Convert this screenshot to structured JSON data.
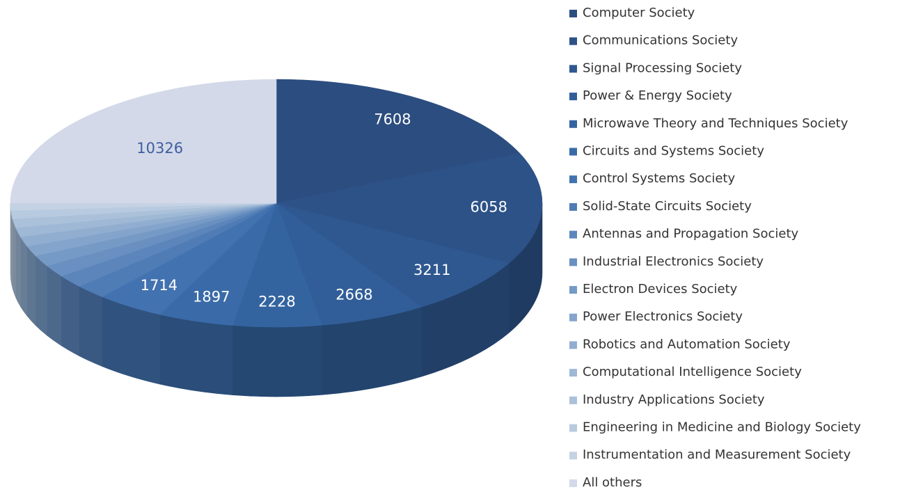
{
  "chart_data": {
    "type": "pie3d",
    "categories": [
      "Computer Society",
      "Communications Society",
      "Signal Processing Society",
      "Power & Energy Society",
      "Microwave Theory and Techniques Society",
      "Circuits and Systems Society",
      "Control Systems Society",
      "Solid-State Circuits Society",
      "Antennas and Propagation Society",
      "Industrial Electronics Society",
      "Electron Devices Society",
      "Power Electronics Society",
      "Robotics and Automation Society",
      "Computational Intelligence Society",
      "Industry Applications Society",
      "Engineering in Medicine and Biology Society",
      "Instrumentation and Measurement Society",
      "All others"
    ],
    "values": [
      7608,
      6058,
      3211,
      2668,
      2228,
      1897,
      1714,
      800,
      700,
      650,
      600,
      550,
      520,
      500,
      480,
      450,
      400,
      10326
    ],
    "colors": [
      "#2c4d7f",
      "#2d5288",
      "#2f5890",
      "#315e98",
      "#3464a0",
      "#3a6ba8",
      "#4272af",
      "#4f7cb5",
      "#5c86bb",
      "#6990c1",
      "#769ac6",
      "#84a4cb",
      "#91aed0",
      "#9eb8d5",
      "#abc1da",
      "#b8cadf",
      "#c4d2e4",
      "#d3d9e9"
    ],
    "legend": "right"
  }
}
